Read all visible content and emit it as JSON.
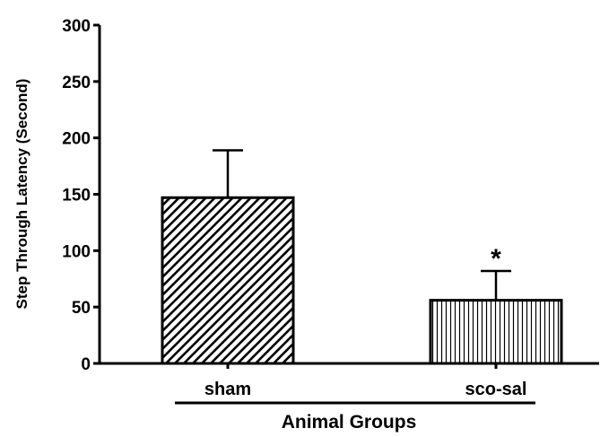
{
  "chart_data": {
    "type": "bar",
    "categories": [
      "sham",
      "sco-sal"
    ],
    "values": [
      147,
      56
    ],
    "error_upper": [
      189,
      82
    ],
    "annotations": [
      {
        "category": "sco-sal",
        "text": "*"
      }
    ],
    "title": "",
    "xlabel": "Animal Groups",
    "ylabel": "Step Through Latency (Second)",
    "ylim": [
      0,
      300
    ],
    "yticks": [
      0,
      50,
      100,
      150,
      200,
      250,
      300
    ],
    "patterns": [
      "diagonal-hatch",
      "vertical-hatch"
    ],
    "grid": false,
    "legend": "none"
  }
}
